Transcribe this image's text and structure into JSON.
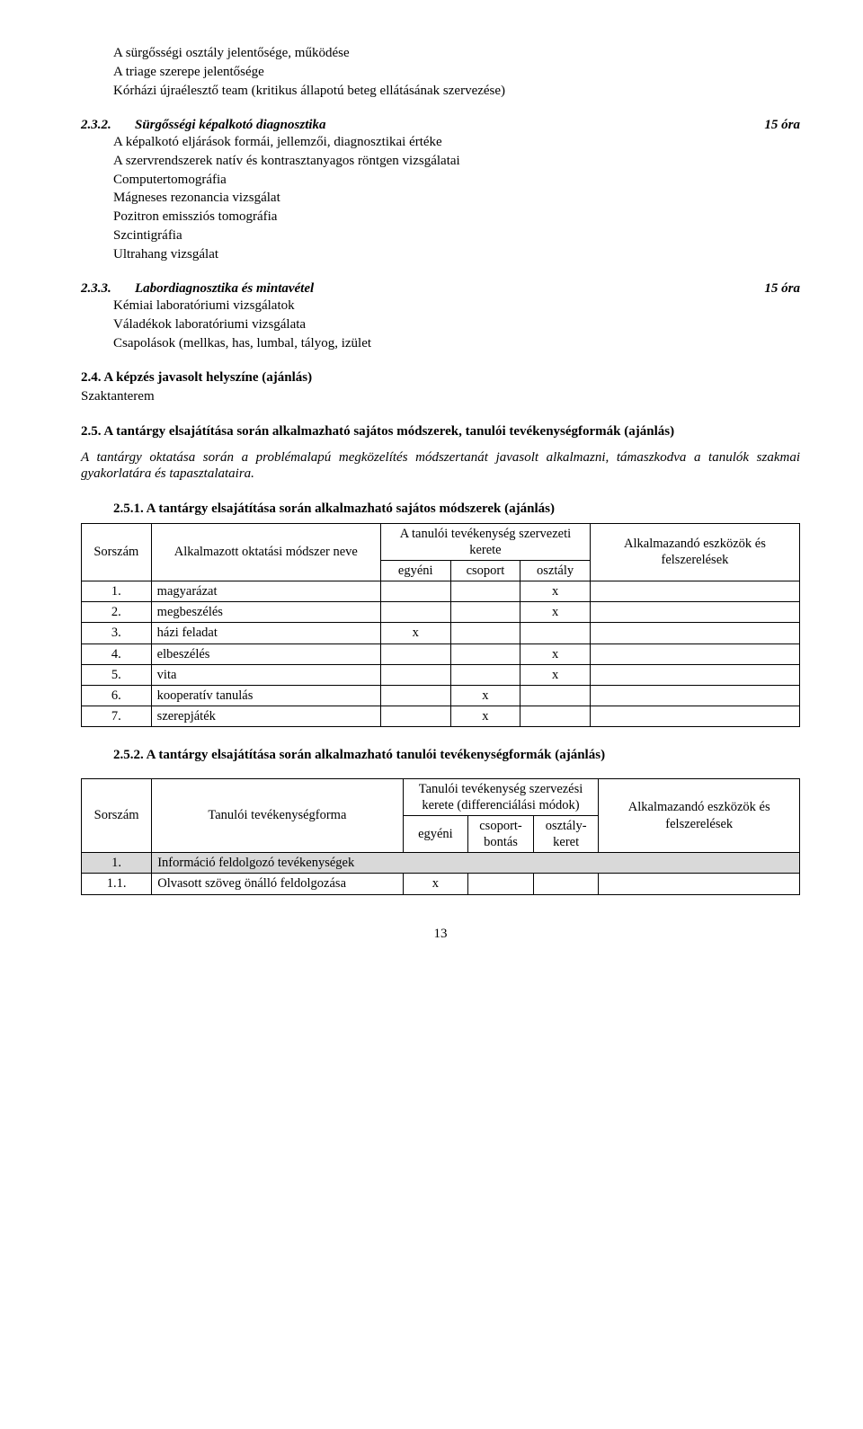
{
  "intro_block": {
    "l1": "A sürgősségi osztály jelentősége, működése",
    "l2": "A triage szerepe jelentősége",
    "l3": "Kórházi újraélesztő team (kritikus állapotú beteg ellátásának szervezése)"
  },
  "sec_232": {
    "num": "2.3.2.",
    "title": "Sürgősségi képalkotó diagnosztika",
    "hours": "15 óra",
    "lines": [
      "A képalkotó eljárások formái, jellemzői, diagnosztikai értéke",
      "A szervrendszerek natív és kontrasztanyagos röntgen vizsgálatai",
      "Computertomográfia",
      "Mágneses rezonancia vizsgálat",
      "Pozitron emissziós tomográfia",
      "Szcintigráfia",
      "Ultrahang vizsgálat"
    ]
  },
  "sec_233": {
    "num": "2.3.3.",
    "title": "Labordiagnosztika és mintavétel",
    "hours": "15 óra",
    "lines": [
      "Kémiai laboratóriumi vizsgálatok",
      "Váladékok laboratóriumi vizsgálata",
      "Csapolások (mellkas, has, lumbal, tályog, izület"
    ]
  },
  "sec_24": {
    "heading": "2.4. A képzés javasolt helyszíne (ajánlás)",
    "line": "Szaktanterem"
  },
  "sec_25": {
    "heading": "2.5. A tantárgy elsajátítása során alkalmazható sajátos módszerek, tanulói tevékenységformák (ajánlás)",
    "para": "A tantárgy oktatása során a problémalapú megközelítés módszertanát javasolt alkalmazni, támaszkodva a tanulók szakmai gyakorlatára és tapasztalataira."
  },
  "sec_251": {
    "heading": "2.5.1. A tantárgy elsajátítása során alkalmazható sajátos módszerek (ajánlás)",
    "table": {
      "columns": {
        "sorszam": "Sorszám",
        "modszer": "Alkalmazott oktatási módszer neve",
        "kerete": "A tanulói tevékenység szervezeti kerete",
        "sub": [
          "egyéni",
          "csoport",
          "osztály"
        ],
        "eszkoz": "Alkalmazandó eszközök és felszerelések"
      },
      "rows": [
        {
          "n": "1.",
          "name": "magyarázat",
          "egyeni": "",
          "csoport": "",
          "osztaly": "x",
          "eszkoz": ""
        },
        {
          "n": "2.",
          "name": "megbeszélés",
          "egyeni": "",
          "csoport": "",
          "osztaly": "x",
          "eszkoz": ""
        },
        {
          "n": "3.",
          "name": "házi feladat",
          "egyeni": "x",
          "csoport": "",
          "osztaly": "",
          "eszkoz": ""
        },
        {
          "n": "4.",
          "name": "elbeszélés",
          "egyeni": "",
          "csoport": "",
          "osztaly": "x",
          "eszkoz": ""
        },
        {
          "n": "5.",
          "name": "vita",
          "egyeni": "",
          "csoport": "",
          "osztaly": "x",
          "eszkoz": ""
        },
        {
          "n": "6.",
          "name": "kooperatív tanulás",
          "egyeni": "",
          "csoport": "x",
          "osztaly": "",
          "eszkoz": ""
        },
        {
          "n": "7.",
          "name": "szerepjáték",
          "egyeni": "",
          "csoport": "x",
          "osztaly": "",
          "eszkoz": ""
        }
      ]
    }
  },
  "sec_252": {
    "heading": "2.5.2. A tantárgy elsajátítása során alkalmazható tanulói tevékenységformák (ajánlás)",
    "table": {
      "columns": {
        "sorszam": "Sorszám",
        "forma": "Tanulói tevékenységforma",
        "kerete": "Tanulói tevékenység szervezési kerete (differenciálási módok)",
        "sub": [
          "egyéni",
          "csoport-bontás",
          "osztály-keret"
        ],
        "eszkoz": "Alkalmazandó eszközök és felszerelések"
      },
      "rows": [
        {
          "n": "1.",
          "name": "Információ feldolgozó tevékenységek",
          "shaded": true
        },
        {
          "n": "1.1.",
          "name": "Olvasott szöveg önálló feldolgozása",
          "egyeni": "x",
          "csoport": "",
          "osztaly": "",
          "eszkoz": ""
        }
      ]
    }
  },
  "page_number": "13"
}
